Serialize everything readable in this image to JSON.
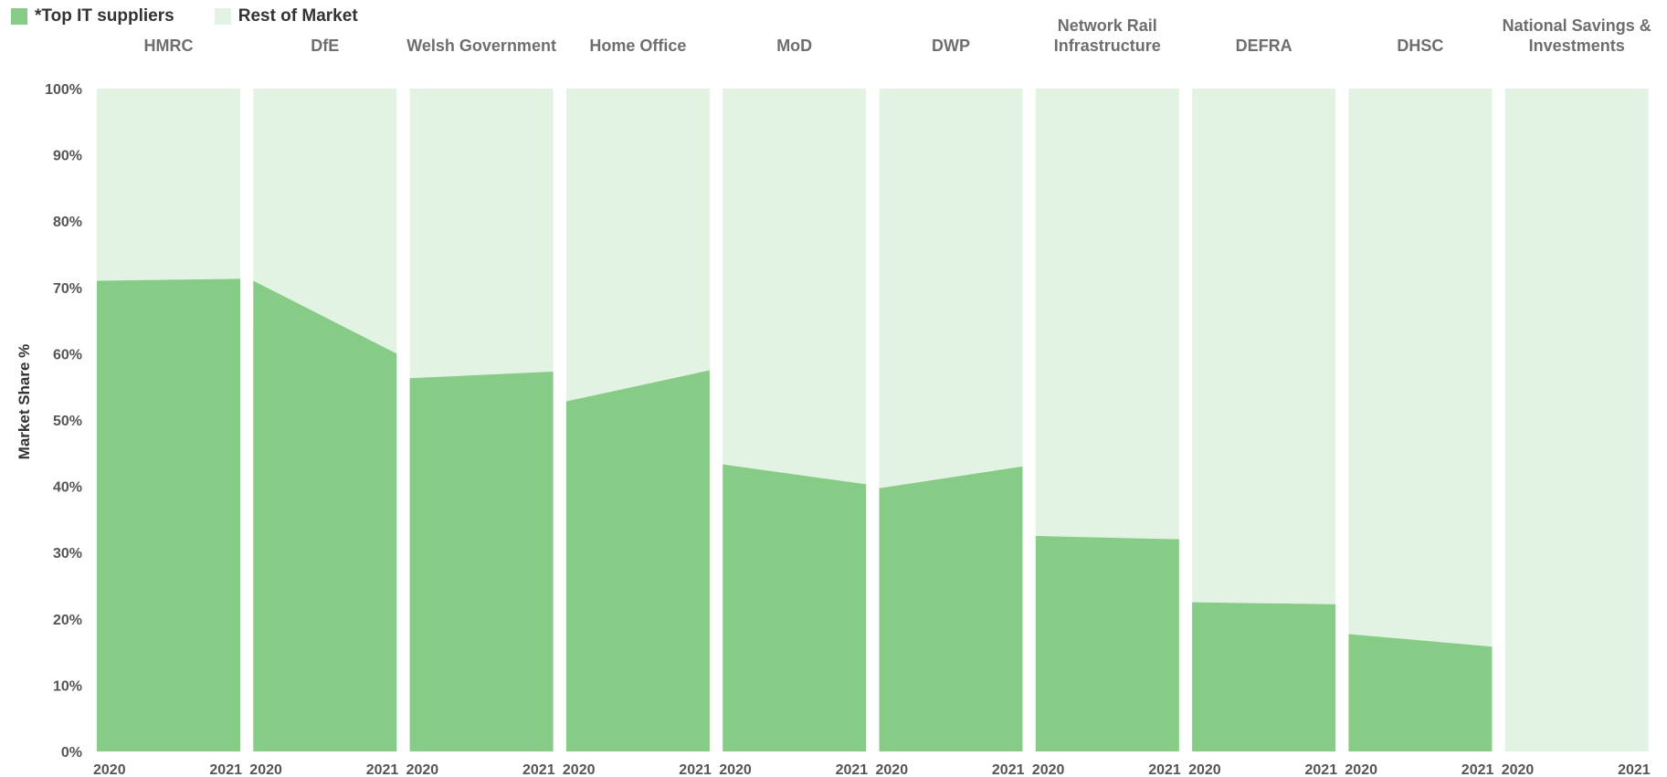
{
  "legend": {
    "series_1": "*Top IT suppliers",
    "series_2": "Rest of Market"
  },
  "colors": {
    "top_suppliers": "#86cb86",
    "rest_of_market": "#e3f3e3"
  },
  "chart_data": {
    "type": "area",
    "ylabel": "Market Share %",
    "ylim": [
      0,
      100
    ],
    "yticks": [
      "0%",
      "10%",
      "20%",
      "30%",
      "40%",
      "50%",
      "60%",
      "70%",
      "80%",
      "90%",
      "100%"
    ],
    "x": [
      "2020",
      "2021"
    ],
    "stacked_to": 100,
    "panels": [
      {
        "title": [
          "HMRC"
        ],
        "top_suppliers": [
          71,
          71.3
        ]
      },
      {
        "title": [
          "DfE"
        ],
        "top_suppliers": [
          71,
          60
        ]
      },
      {
        "title": [
          "Welsh Government"
        ],
        "top_suppliers": [
          56.3,
          57.3
        ]
      },
      {
        "title": [
          "Home Office"
        ],
        "top_suppliers": [
          52.8,
          57.5
        ]
      },
      {
        "title": [
          "MoD"
        ],
        "top_suppliers": [
          43.3,
          40.3
        ]
      },
      {
        "title": [
          "DWP"
        ],
        "top_suppliers": [
          39.7,
          43
        ]
      },
      {
        "title": [
          "Network Rail",
          "Infrastructure"
        ],
        "top_suppliers": [
          32.5,
          32
        ]
      },
      {
        "title": [
          "DEFRA"
        ],
        "top_suppliers": [
          22.5,
          22.2
        ]
      },
      {
        "title": [
          "DHSC"
        ],
        "top_suppliers": [
          17.7,
          15.8
        ]
      },
      {
        "title": [
          "National Savings &",
          "Investments"
        ],
        "top_suppliers": [
          0,
          0
        ]
      }
    ],
    "grid": false,
    "legend_position": "top-left"
  }
}
